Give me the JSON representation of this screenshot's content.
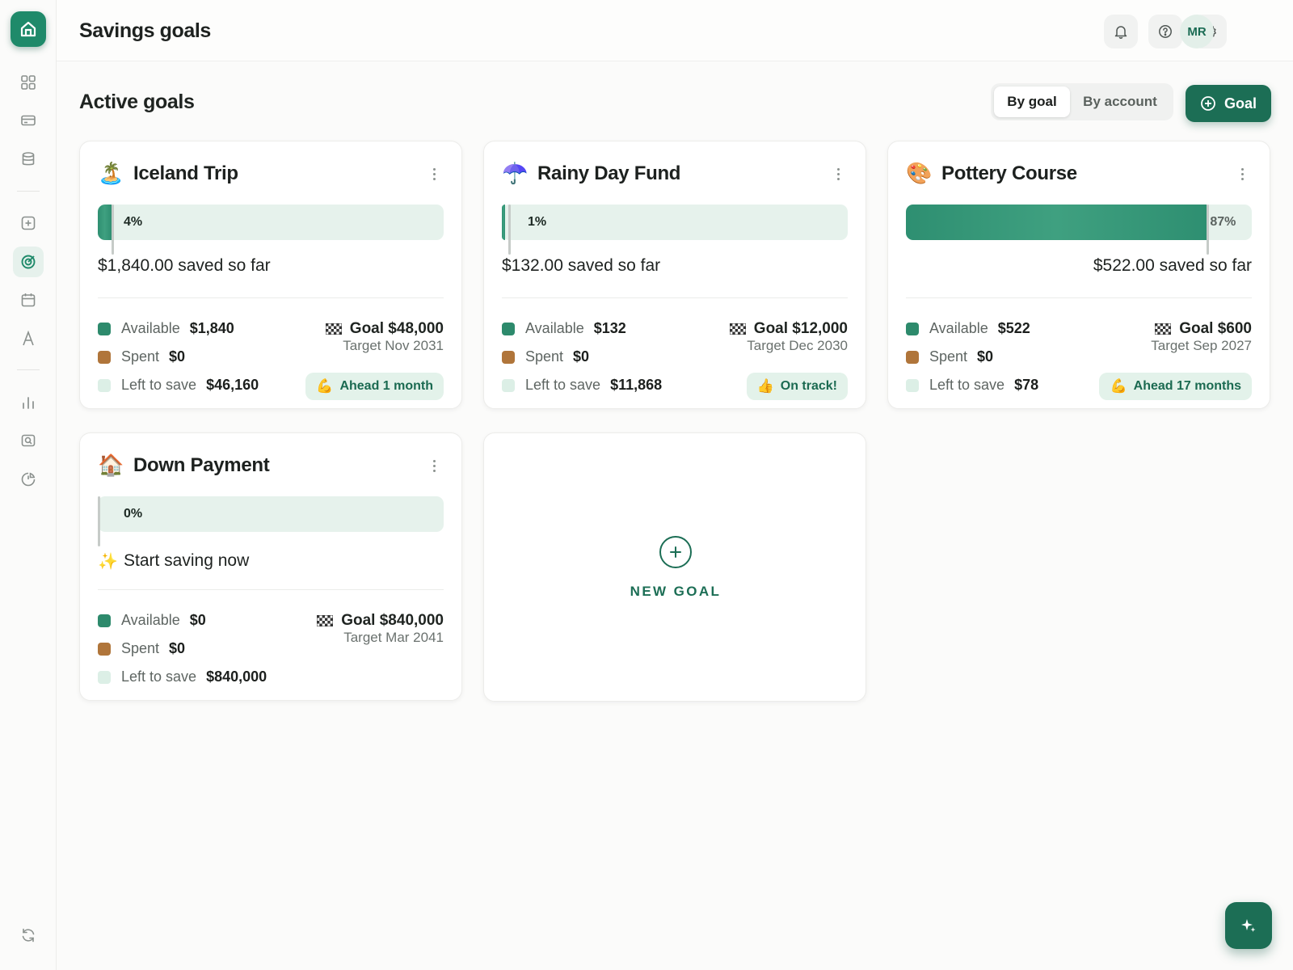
{
  "header": {
    "title": "Savings goals",
    "avatar_initials": "MR"
  },
  "section": {
    "title": "Active goals",
    "view_toggle": {
      "options": [
        "By goal",
        "By account"
      ],
      "selected": "By goal"
    },
    "add_goal_label": "Goal"
  },
  "sidebar": {
    "icons": [
      "home-icon",
      "grid-icon",
      "card-icon",
      "database-icon",
      "plus-square-icon",
      "target-icon",
      "calendar-icon",
      "font-icon",
      "bar-chart-icon",
      "search-money-icon",
      "pie-chart-icon",
      "sync-icon"
    ],
    "active": "target-icon"
  },
  "topbar": {
    "icons": [
      "bell-icon",
      "help-icon",
      "gear-icon"
    ]
  },
  "legend_labels": {
    "available": "Available",
    "spent": "Spent",
    "left": "Left to save"
  },
  "goals": [
    {
      "emoji": "🏝️",
      "name": "Iceland Trip",
      "percent": 0.04,
      "percent_label": "4%",
      "saved_text": "$1,840.00 saved so far",
      "available": "$1,840",
      "spent": "$0",
      "left": "$46,160",
      "goal_text": "Goal $48,000",
      "target_text": "Target Nov 2031",
      "pace_emoji": "💪",
      "pace_text": "Ahead 1 month"
    },
    {
      "emoji": "☂️",
      "name": "Rainy Day Fund",
      "percent": 0.01,
      "percent_label": "1%",
      "saved_text": "$132.00 saved so far",
      "available": "$132",
      "spent": "$0",
      "left": "$11,868",
      "goal_text": "Goal $12,000",
      "target_text": "Target Dec 2030",
      "pace_emoji": "👍",
      "pace_text": "On track!"
    },
    {
      "emoji": "🎨",
      "name": "Pottery Course",
      "percent": 0.87,
      "percent_label": "87%",
      "saved_text": "$522.00 saved so far",
      "available": "$522",
      "spent": "$0",
      "left": "$78",
      "goal_text": "Goal $600",
      "target_text": "Target Sep 2027",
      "pace_emoji": "💪",
      "pace_text": "Ahead 17 months"
    },
    {
      "emoji": "🏠",
      "name": "Down Payment",
      "percent": 0.0,
      "percent_label": "0%",
      "saved_text": "Start saving now",
      "saved_emoji": "✨",
      "available": "$0",
      "spent": "$0",
      "left": "$840,000",
      "goal_text": "Goal $840,000",
      "target_text": "Target Mar 2041"
    }
  ],
  "new_goal_label": "NEW GOAL",
  "colors": {
    "brand": "#1c6e55",
    "progress": "#2e8f71",
    "progress_track": "#e6f2ec",
    "available": "#2d8a6c",
    "spent": "#b0753a",
    "left_to_save": "#dcefe6"
  }
}
